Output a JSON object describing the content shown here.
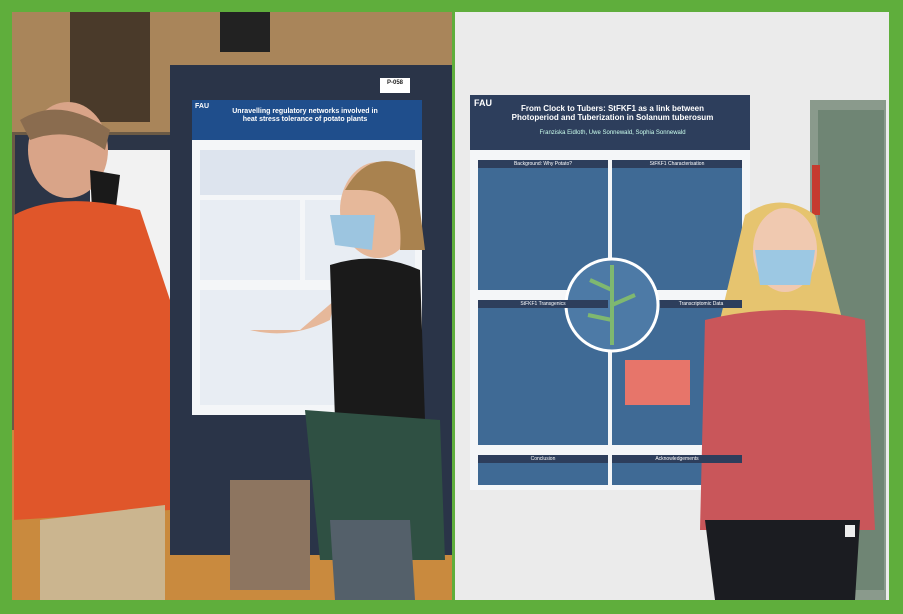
{
  "left_photo": {
    "poster_label": "P-058",
    "poster_org": "FAU",
    "poster_title": "Unravelling regulatory networks involved in heat stress tolerance of potato plants"
  },
  "right_photo": {
    "poster_org": "FAU",
    "poster_title": "From Clock to Tubers: StFKF1 as a link between Photoperiod and Tuberization in Solanum tuberosum",
    "poster_authors": "Franziska Eidloth, Uwe Sonnewald, Sophia Sonnewald",
    "sections": [
      "Background: Why Potato?",
      "StFKF1 Characterisation",
      "StFKF1 Transgenics",
      "Transcriptomic Data",
      "Conclusion",
      "Acknowledgements"
    ]
  }
}
